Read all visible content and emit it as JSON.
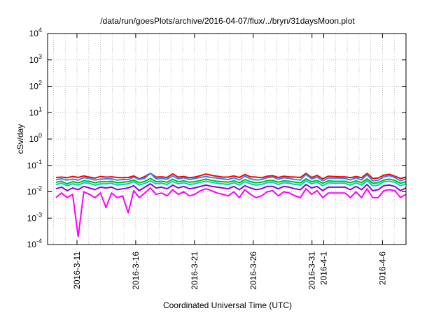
{
  "chart_data": {
    "type": "line",
    "title": "/data/run/goesPlots/archive/2016-04-07/flux/../bryn/31daysMoon.plot",
    "xlabel": "Coordinated Universal Time (UTC)",
    "ylabel": "cSv/day",
    "yscale": "log",
    "ylim": [
      0.0001,
      10000
    ],
    "xlim": [
      "2016-03-08T12:00",
      "2016-04-08T00:00"
    ],
    "grid": true,
    "legend": "none",
    "y_ticks": [
      {
        "base": "10",
        "exp": "-4",
        "value": 0.0001
      },
      {
        "base": "10",
        "exp": "-3",
        "value": 0.001
      },
      {
        "base": "10",
        "exp": "-2",
        "value": 0.01
      },
      {
        "base": "10",
        "exp": "-1",
        "value": 0.1
      },
      {
        "base": "10",
        "exp": "0",
        "value": 1
      },
      {
        "base": "10",
        "exp": "1",
        "value": 10
      },
      {
        "base": "10",
        "exp": "2",
        "value": 100
      },
      {
        "base": "10",
        "exp": "3",
        "value": 1000
      },
      {
        "base": "10",
        "exp": "4",
        "value": 10000
      }
    ],
    "x_ticks": [
      {
        "label": "2016-3-11",
        "date": "2016-03-11"
      },
      {
        "label": "2016-3-16",
        "date": "2016-03-16"
      },
      {
        "label": "2016-3-21",
        "date": "2016-03-21"
      },
      {
        "label": "2016-3-26",
        "date": "2016-03-26"
      },
      {
        "label": "2016-3-31",
        "date": "2016-03-31"
      },
      {
        "label": "2016-4-1",
        "date": "2016-04-01"
      },
      {
        "label": "2016-4-6",
        "date": "2016-04-06"
      }
    ],
    "x_grid": [
      "2016-03-09",
      "2016-03-10",
      "2016-03-11",
      "2016-03-12",
      "2016-03-13",
      "2016-03-14",
      "2016-03-15",
      "2016-03-16",
      "2016-03-17",
      "2016-03-18",
      "2016-03-19",
      "2016-03-20",
      "2016-03-21",
      "2016-03-22",
      "2016-03-23",
      "2016-03-24",
      "2016-03-25",
      "2016-03-26",
      "2016-03-27",
      "2016-03-28",
      "2016-03-29",
      "2016-03-30",
      "2016-03-31",
      "2016-04-01",
      "2016-04-02",
      "2016-04-03",
      "2016-04-04",
      "2016-04-05",
      "2016-04-06",
      "2016-04-07"
    ],
    "series": [
      {
        "color": "#ff0000",
        "values": [
          0.035,
          0.036,
          0.034,
          0.038,
          0.035,
          0.04,
          0.036,
          0.033,
          0.038,
          0.036,
          0.037,
          0.035,
          0.034,
          0.035,
          0.04,
          0.031,
          0.038,
          0.05,
          0.036,
          0.037,
          0.035,
          0.048,
          0.036,
          0.038,
          0.034,
          0.036,
          0.041,
          0.047,
          0.042,
          0.039,
          0.036,
          0.036,
          0.04,
          0.035,
          0.045,
          0.037,
          0.036,
          0.034,
          0.039,
          0.041,
          0.035,
          0.039,
          0.037,
          0.036,
          0.035,
          0.05,
          0.035,
          0.042,
          0.031,
          0.039,
          0.038,
          0.037,
          0.037,
          0.034,
          0.038,
          0.034,
          0.05,
          0.032,
          0.033,
          0.043,
          0.046,
          0.039,
          0.032,
          0.036
        ]
      },
      {
        "color": "#1e90ff",
        "values": [
          0.029,
          0.031,
          0.028,
          0.03,
          0.028,
          0.034,
          0.032,
          0.028,
          0.03,
          0.031,
          0.031,
          0.028,
          0.029,
          0.029,
          0.036,
          0.029,
          0.033,
          0.05,
          0.031,
          0.032,
          0.03,
          0.04,
          0.031,
          0.034,
          0.029,
          0.032,
          0.035,
          0.038,
          0.035,
          0.033,
          0.031,
          0.029,
          0.034,
          0.028,
          0.039,
          0.031,
          0.028,
          0.029,
          0.034,
          0.036,
          0.03,
          0.034,
          0.032,
          0.029,
          0.028,
          0.045,
          0.031,
          0.036,
          0.026,
          0.033,
          0.033,
          0.033,
          0.032,
          0.028,
          0.034,
          0.028,
          0.044,
          0.026,
          0.027,
          0.037,
          0.041,
          0.035,
          0.026,
          0.031
        ]
      },
      {
        "color": "#00c000",
        "values": [
          0.023,
          0.025,
          0.02,
          0.024,
          0.022,
          0.026,
          0.025,
          0.022,
          0.024,
          0.024,
          0.025,
          0.022,
          0.023,
          0.024,
          0.028,
          0.022,
          0.025,
          0.032,
          0.024,
          0.025,
          0.023,
          0.03,
          0.024,
          0.026,
          0.023,
          0.024,
          0.027,
          0.03,
          0.027,
          0.025,
          0.024,
          0.023,
          0.026,
          0.022,
          0.029,
          0.024,
          0.022,
          0.023,
          0.026,
          0.027,
          0.023,
          0.026,
          0.025,
          0.023,
          0.022,
          0.031,
          0.024,
          0.027,
          0.021,
          0.026,
          0.025,
          0.025,
          0.025,
          0.022,
          0.026,
          0.022,
          0.031,
          0.021,
          0.022,
          0.028,
          0.03,
          0.027,
          0.021,
          0.024
        ]
      },
      {
        "color": "#00ced1",
        "values": [
          0.019,
          0.021,
          0.017,
          0.02,
          0.018,
          0.022,
          0.021,
          0.018,
          0.02,
          0.02,
          0.021,
          0.018,
          0.019,
          0.02,
          0.024,
          0.018,
          0.021,
          0.026,
          0.02,
          0.021,
          0.019,
          0.025,
          0.02,
          0.022,
          0.019,
          0.02,
          0.023,
          0.025,
          0.023,
          0.021,
          0.02,
          0.019,
          0.022,
          0.018,
          0.024,
          0.02,
          0.018,
          0.019,
          0.022,
          0.023,
          0.019,
          0.022,
          0.021,
          0.019,
          0.018,
          0.026,
          0.02,
          0.023,
          0.017,
          0.022,
          0.021,
          0.021,
          0.021,
          0.018,
          0.022,
          0.018,
          0.026,
          0.017,
          0.018,
          0.024,
          0.025,
          0.023,
          0.017,
          0.02
        ]
      },
      {
        "color": "#9400d3",
        "values": [
          0.013,
          0.015,
          0.011,
          0.014,
          0.012,
          0.016,
          0.014,
          0.012,
          0.015,
          0.014,
          0.015,
          0.012,
          0.013,
          0.014,
          0.017,
          0.011,
          0.015,
          0.02,
          0.014,
          0.015,
          0.013,
          0.018,
          0.014,
          0.016,
          0.013,
          0.014,
          0.016,
          0.018,
          0.016,
          0.015,
          0.014,
          0.013,
          0.016,
          0.012,
          0.017,
          0.014,
          0.012,
          0.013,
          0.016,
          0.016,
          0.013,
          0.016,
          0.015,
          0.013,
          0.012,
          0.019,
          0.014,
          0.016,
          0.011,
          0.015,
          0.015,
          0.015,
          0.015,
          0.012,
          0.016,
          0.012,
          0.019,
          0.011,
          0.012,
          0.017,
          0.018,
          0.016,
          0.011,
          0.014
        ]
      },
      {
        "color": "#ff00ff",
        "values": [
          0.006,
          0.009,
          0.006,
          0.008,
          0.0002,
          0.01,
          0.008,
          0.006,
          0.009,
          0.0025,
          0.009,
          0.006,
          0.007,
          0.0016,
          0.011,
          0.006,
          0.009,
          0.014,
          0.008,
          0.009,
          0.007,
          0.012,
          0.008,
          0.01,
          0.007,
          0.008,
          0.011,
          0.013,
          0.011,
          0.009,
          0.008,
          0.007,
          0.01,
          0.006,
          0.012,
          0.008,
          0.006,
          0.007,
          0.01,
          0.011,
          0.007,
          0.01,
          0.009,
          0.007,
          0.006,
          0.013,
          0.008,
          0.011,
          0.006,
          0.009,
          0.009,
          0.009,
          0.009,
          0.006,
          0.01,
          0.006,
          0.013,
          0.006,
          0.006,
          0.011,
          0.012,
          0.011,
          0.006,
          0.008
        ]
      }
    ]
  }
}
